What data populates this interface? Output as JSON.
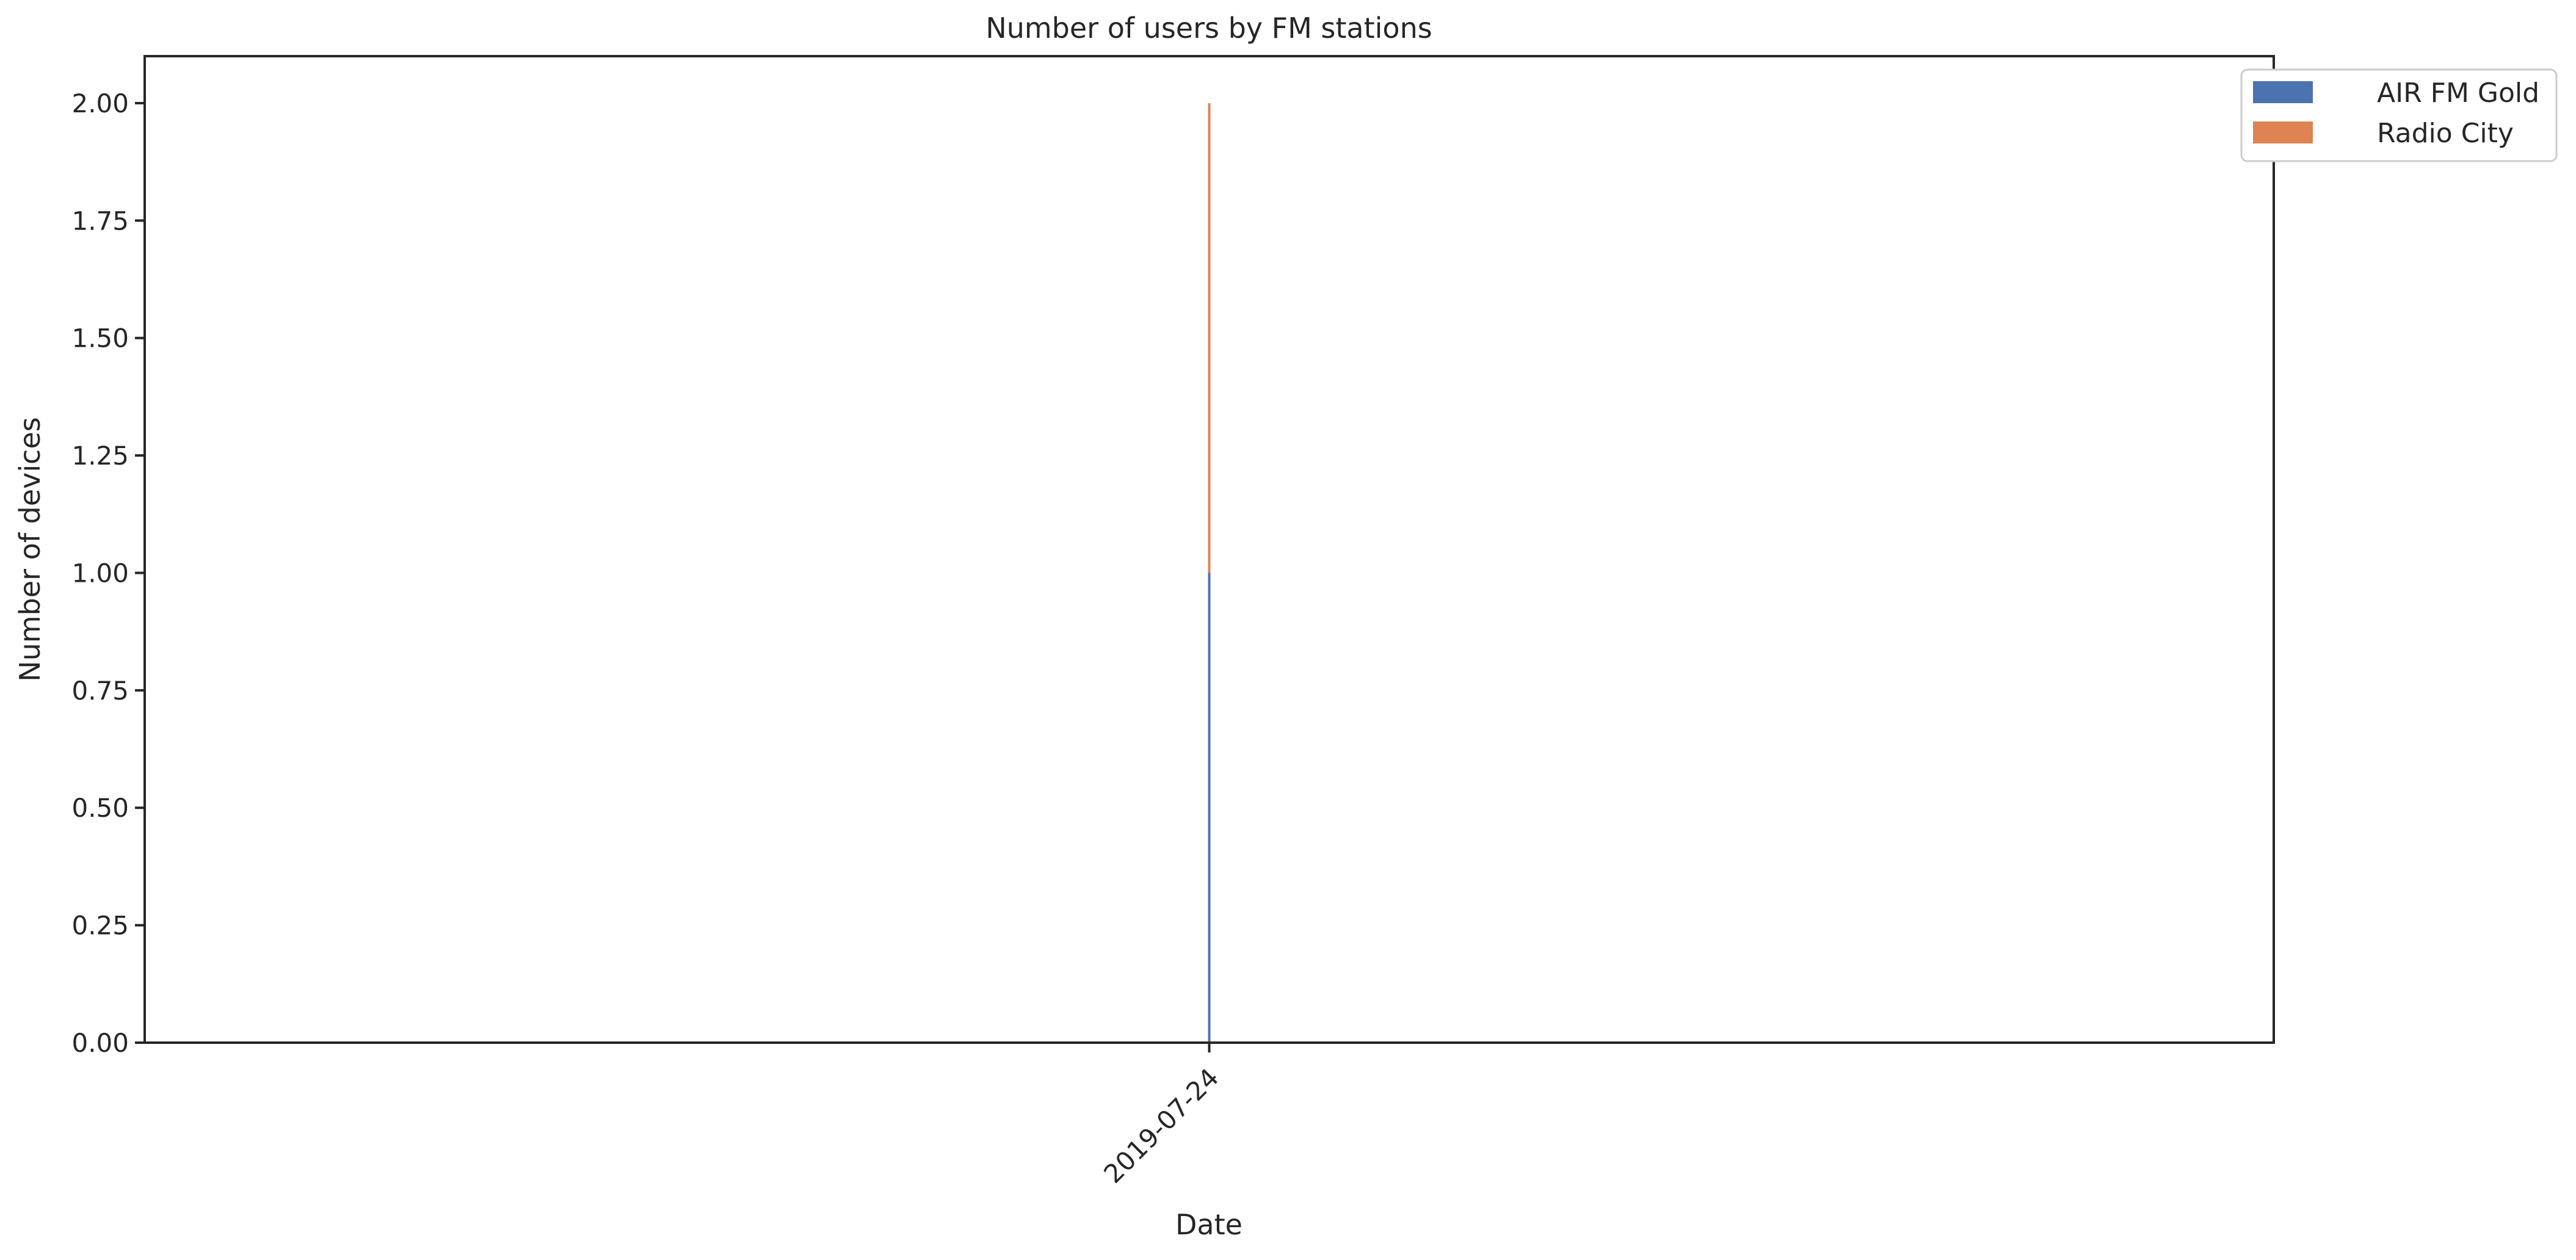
{
  "chart_data": {
    "type": "bar",
    "stacked": true,
    "title": "Number of users by FM stations",
    "xlabel": "Date",
    "ylabel": "Number of devices",
    "categories": [
      "2019-07-24"
    ],
    "ylim": [
      0,
      2.1
    ],
    "yticks": [
      "0.00",
      "0.25",
      "0.50",
      "0.75",
      "1.00",
      "1.25",
      "1.50",
      "1.75",
      "2.00"
    ],
    "series": [
      {
        "name": "AIR FM Gold",
        "values": [
          1
        ],
        "color": "#4c72b0"
      },
      {
        "name": "Radio City",
        "values": [
          1
        ],
        "color": "#dd8452"
      }
    ],
    "legend": "outside-top-right",
    "grid": false
  }
}
